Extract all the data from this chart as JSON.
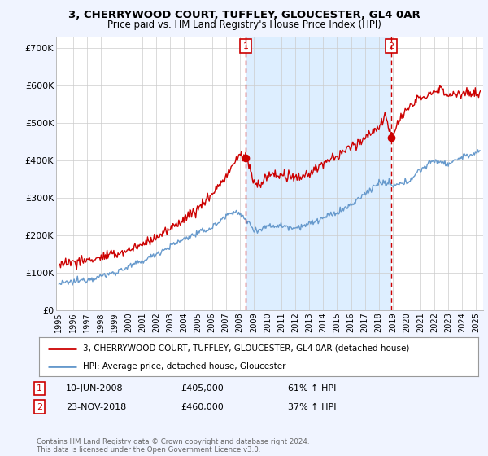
{
  "title": "3, CHERRYWOOD COURT, TUFFLEY, GLOUCESTER, GL4 0AR",
  "subtitle": "Price paid vs. HM Land Registry's House Price Index (HPI)",
  "background_color": "#f0f4ff",
  "plot_bg_color": "#ffffff",
  "highlight_color": "#ddeeff",
  "grid_color": "#cccccc",
  "ylabel_ticks": [
    "£0",
    "£100K",
    "£200K",
    "£300K",
    "£400K",
    "£500K",
    "£600K",
    "£700K"
  ],
  "ytick_values": [
    0,
    100000,
    200000,
    300000,
    400000,
    500000,
    600000,
    700000
  ],
  "ylim": [
    0,
    730000
  ],
  "xlim_start": 1994.8,
  "xlim_end": 2025.5,
  "sale1_date": 2008.44,
  "sale1_price": 405000,
  "sale1_label": "1",
  "sale2_date": 2018.9,
  "sale2_price": 460000,
  "sale2_label": "2",
  "red_color": "#cc0000",
  "blue_color": "#6699cc",
  "legend_entries": [
    "3, CHERRYWOOD COURT, TUFFLEY, GLOUCESTER, GL4 0AR (detached house)",
    "HPI: Average price, detached house, Gloucester"
  ],
  "annotation1": [
    "1",
    "10-JUN-2008",
    "£405,000",
    "61% ↑ HPI"
  ],
  "annotation2": [
    "2",
    "23-NOV-2018",
    "£460,000",
    "37% ↑ HPI"
  ],
  "footer": "Contains HM Land Registry data © Crown copyright and database right 2024.\nThis data is licensed under the Open Government Licence v3.0.",
  "xtick_years": [
    1995,
    1996,
    1997,
    1998,
    1999,
    2000,
    2001,
    2002,
    2003,
    2004,
    2005,
    2006,
    2007,
    2008,
    2009,
    2010,
    2011,
    2012,
    2013,
    2014,
    2015,
    2016,
    2017,
    2018,
    2019,
    2020,
    2021,
    2022,
    2023,
    2024,
    2025
  ]
}
